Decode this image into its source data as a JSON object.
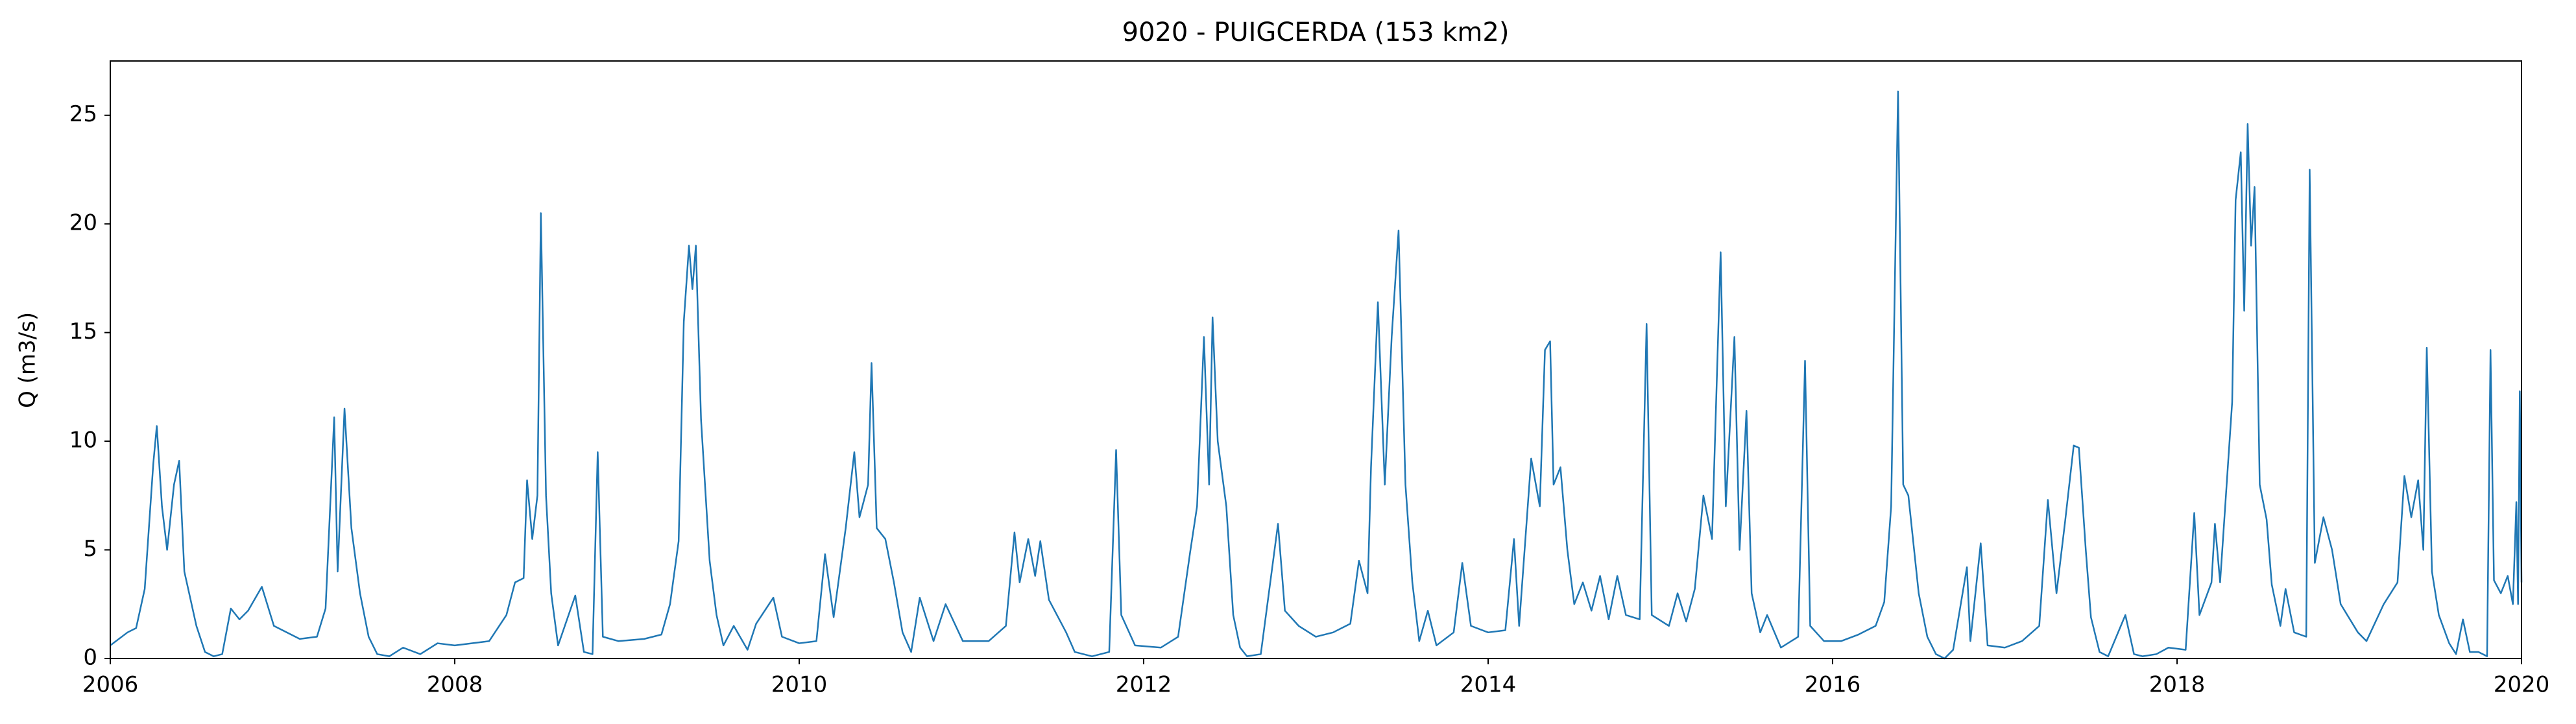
{
  "chart_data": {
    "type": "line",
    "title": "9020 - PUIGCERDA (153 km2)",
    "y_label": "Q (m3/s)",
    "xlim": [
      2006,
      2020
    ],
    "xticks": [
      2006,
      2008,
      2010,
      2012,
      2014,
      2016,
      2018,
      2020
    ],
    "ylim": [
      0,
      27.5
    ],
    "yticks": [
      0,
      5,
      10,
      15,
      20,
      25
    ],
    "grid": false,
    "series": [
      {
        "color": "#1f77b4",
        "x": [
          2006,
          2006.1,
          2006.15,
          2006.2,
          2006.25,
          2006.27,
          2006.3,
          2006.33,
          2006.37,
          2006.4,
          2006.43,
          2006.5,
          2006.55,
          2006.6,
          2006.65,
          2006.7,
          2006.75,
          2006.8,
          2006.88,
          2006.95,
          2007.1,
          2007.2,
          2007.25,
          2007.3,
          2007.32,
          2007.36,
          2007.4,
          2007.45,
          2007.5,
          2007.55,
          2007.62,
          2007.7,
          2007.8,
          2007.9,
          2008,
          2008.2,
          2008.3,
          2008.35,
          2008.4,
          2008.42,
          2008.45,
          2008.48,
          2008.5,
          2008.53,
          2008.56,
          2008.6,
          2008.7,
          2008.75,
          2008.8,
          2008.83,
          2008.86,
          2008.95,
          2009.1,
          2009.2,
          2009.25,
          2009.3,
          2009.33,
          2009.36,
          2009.38,
          2009.4,
          2009.43,
          2009.48,
          2009.52,
          2009.56,
          2009.62,
          2009.7,
          2009.75,
          2009.85,
          2009.9,
          2010,
          2010.1,
          2010.15,
          2010.2,
          2010.27,
          2010.32,
          2010.35,
          2010.4,
          2010.42,
          2010.45,
          2010.5,
          2010.55,
          2010.6,
          2010.65,
          2010.7,
          2010.78,
          2010.85,
          2010.95,
          2011.1,
          2011.2,
          2011.25,
          2011.28,
          2011.33,
          2011.37,
          2011.4,
          2011.45,
          2011.55,
          2011.6,
          2011.7,
          2011.8,
          2011.84,
          2011.87,
          2011.95,
          2012.1,
          2012.2,
          2012.27,
          2012.31,
          2012.35,
          2012.38,
          2012.4,
          2012.43,
          2012.48,
          2012.52,
          2012.56,
          2012.6,
          2012.68,
          2012.78,
          2012.82,
          2012.9,
          2013,
          2013.1,
          2013.2,
          2013.25,
          2013.3,
          2013.32,
          2013.36,
          2013.4,
          2013.44,
          2013.48,
          2013.52,
          2013.56,
          2013.6,
          2013.65,
          2013.7,
          2013.8,
          2013.85,
          2013.9,
          2014,
          2014.1,
          2014.15,
          2014.18,
          2014.25,
          2014.3,
          2014.33,
          2014.36,
          2014.38,
          2014.42,
          2014.46,
          2014.5,
          2014.55,
          2014.6,
          2014.65,
          2014.7,
          2014.75,
          2014.8,
          2014.88,
          2014.92,
          2014.95,
          2015.05,
          2015.1,
          2015.15,
          2015.2,
          2015.25,
          2015.3,
          2015.35,
          2015.38,
          2015.43,
          2015.46,
          2015.5,
          2015.53,
          2015.58,
          2015.62,
          2015.7,
          2015.8,
          2015.84,
          2015.87,
          2015.95,
          2016.05,
          2016.15,
          2016.25,
          2016.3,
          2016.34,
          2016.38,
          2016.41,
          2016.44,
          2016.5,
          2016.55,
          2016.6,
          2016.65,
          2016.7,
          2016.78,
          2016.8,
          2016.86,
          2016.9,
          2017,
          2017.1,
          2017.2,
          2017.25,
          2017.3,
          2017.35,
          2017.4,
          2017.43,
          2017.47,
          2017.5,
          2017.55,
          2017.6,
          2017.7,
          2017.75,
          2017.8,
          2017.88,
          2017.95,
          2018.05,
          2018.1,
          2018.13,
          2018.2,
          2018.22,
          2018.25,
          2018.32,
          2018.34,
          2018.37,
          2018.39,
          2018.41,
          2018.43,
          2018.45,
          2018.48,
          2018.52,
          2018.55,
          2018.6,
          2018.63,
          2018.68,
          2018.75,
          2018.77,
          2018.8,
          2018.85,
          2018.9,
          2018.95,
          2019.05,
          2019.1,
          2019.2,
          2019.28,
          2019.32,
          2019.36,
          2019.4,
          2019.43,
          2019.45,
          2019.48,
          2019.52,
          2019.58,
          2019.62,
          2019.66,
          2019.7,
          2019.75,
          2019.8,
          2019.82,
          2019.84,
          2019.88,
          2019.92,
          2019.95,
          2019.97,
          2019.98,
          2019.99,
          2020
        ],
        "values": [
          0.6,
          1.2,
          1.4,
          3.2,
          9,
          10.7,
          7,
          5,
          8,
          9.1,
          4,
          1.5,
          0.3,
          0.1,
          0.2,
          2.3,
          1.8,
          2.2,
          3.3,
          1.5,
          0.9,
          1,
          2.3,
          11.1,
          4,
          11.5,
          6,
          3,
          1,
          0.2,
          0.1,
          0.5,
          0.2,
          0.7,
          0.6,
          0.8,
          2,
          3.5,
          3.7,
          8.2,
          5.5,
          7.5,
          20.5,
          7.5,
          3,
          0.6,
          2.9,
          0.3,
          0.2,
          9.5,
          1,
          0.8,
          0.9,
          1.1,
          2.5,
          5.4,
          15.5,
          19,
          17,
          19,
          11,
          4.5,
          2,
          0.6,
          1.5,
          0.4,
          1.6,
          2.8,
          1,
          0.7,
          0.8,
          4.8,
          1.9,
          6,
          9.5,
          6.5,
          8,
          13.6,
          6,
          5.5,
          3.5,
          1.2,
          0.3,
          2.8,
          0.8,
          2.5,
          0.8,
          0.8,
          1.5,
          5.8,
          3.5,
          5.5,
          3.8,
          5.4,
          2.7,
          1.2,
          0.3,
          0.1,
          0.3,
          9.6,
          2,
          0.6,
          0.5,
          1,
          4.9,
          7,
          14.8,
          8,
          15.7,
          10,
          7,
          2,
          0.5,
          0.1,
          0.2,
          6.2,
          2.2,
          1.5,
          1,
          1.2,
          1.6,
          4.5,
          3,
          8.8,
          16.4,
          8,
          14.8,
          19.7,
          8,
          3.5,
          0.8,
          2.2,
          0.6,
          1.2,
          4.4,
          1.5,
          1.2,
          1.3,
          5.5,
          1.5,
          9.2,
          7,
          14.2,
          14.6,
          8,
          8.8,
          5,
          2.5,
          3.5,
          2.2,
          3.8,
          1.8,
          3.8,
          2,
          1.8,
          15.4,
          2,
          1.5,
          3,
          1.7,
          3.2,
          7.5,
          5.5,
          18.7,
          7,
          14.8,
          5,
          11.4,
          3,
          1.2,
          2,
          0.5,
          1,
          13.7,
          1.5,
          0.8,
          0.8,
          1.1,
          1.5,
          2.6,
          7,
          26.1,
          8,
          7.5,
          3,
          1,
          0.2,
          0,
          0.4,
          4.2,
          0.8,
          5.3,
          0.6,
          0.5,
          0.8,
          1.5,
          7.3,
          3,
          6.3,
          9.8,
          9.7,
          5,
          1.9,
          0.3,
          0.1,
          2,
          0.2,
          0.1,
          0.2,
          0.5,
          0.4,
          6.7,
          2,
          3.5,
          6.2,
          3.5,
          11.8,
          21.1,
          23.3,
          16,
          24.6,
          19,
          21.7,
          8,
          6.4,
          3.4,
          1.5,
          3.2,
          1.2,
          1,
          22.5,
          4.4,
          6.5,
          5,
          2.5,
          1.2,
          0.8,
          2.5,
          3.5,
          8.4,
          6.5,
          8.2,
          5,
          14.3,
          4,
          2,
          0.7,
          0.2,
          1.8,
          0.3,
          0.3,
          0.1,
          14.2,
          3.6,
          3,
          3.8,
          2.5,
          7.2,
          2.5,
          12.3,
          3.5
        ]
      }
    ]
  }
}
